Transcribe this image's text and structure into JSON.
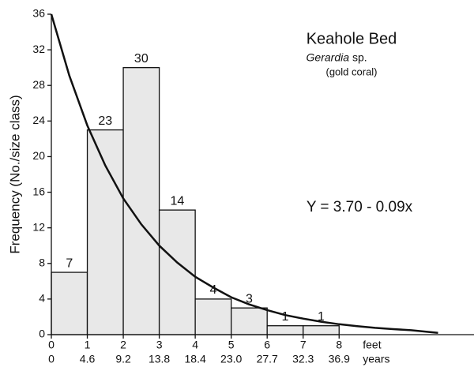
{
  "chart_data": {
    "type": "histogram",
    "title": "Keahole Bed",
    "subtitle_italic": "Gerardia",
    "subtitle_rest": "sp.",
    "subtitle2": "(gold coral)",
    "annotation": "Y = 3.70 - 0.09x",
    "ylabel": "Frequency (No./size class)",
    "x_unit": "feet",
    "x2_unit": "years",
    "bins": [
      0,
      1,
      2,
      3,
      4,
      5,
      6,
      7,
      8
    ],
    "counts": [
      7,
      23,
      30,
      14,
      4,
      3,
      1,
      1
    ],
    "color": "#e8e8e8",
    "curve": {
      "x": [
        0,
        0.5,
        1,
        1.5,
        2,
        2.5,
        3,
        3.5,
        4,
        4.5,
        5,
        5.5,
        6,
        6.5,
        7,
        7.5,
        8,
        8.5,
        9,
        9.5,
        10,
        10.75
      ],
      "y": [
        36,
        29.1,
        23.5,
        19,
        15.3,
        12.4,
        10,
        8.1,
        6.5,
        5.3,
        4.2,
        3.4,
        2.75,
        2.2,
        1.8,
        1.45,
        1.17,
        0.95,
        0.76,
        0.62,
        0.5,
        0.2
      ]
    },
    "xlim": [
      0,
      11.75
    ],
    "xticks": [
      0,
      1,
      2,
      3,
      4,
      5,
      6,
      7,
      8
    ],
    "x2ticklabels": [
      "0",
      "4.6",
      "9.2",
      "13.8",
      "18.4",
      "23.0",
      "27.7",
      "32.3",
      "36.9"
    ],
    "ylim": [
      0,
      36
    ],
    "yticks": [
      0,
      4,
      8,
      12,
      16,
      20,
      24,
      28,
      32,
      36
    ]
  }
}
